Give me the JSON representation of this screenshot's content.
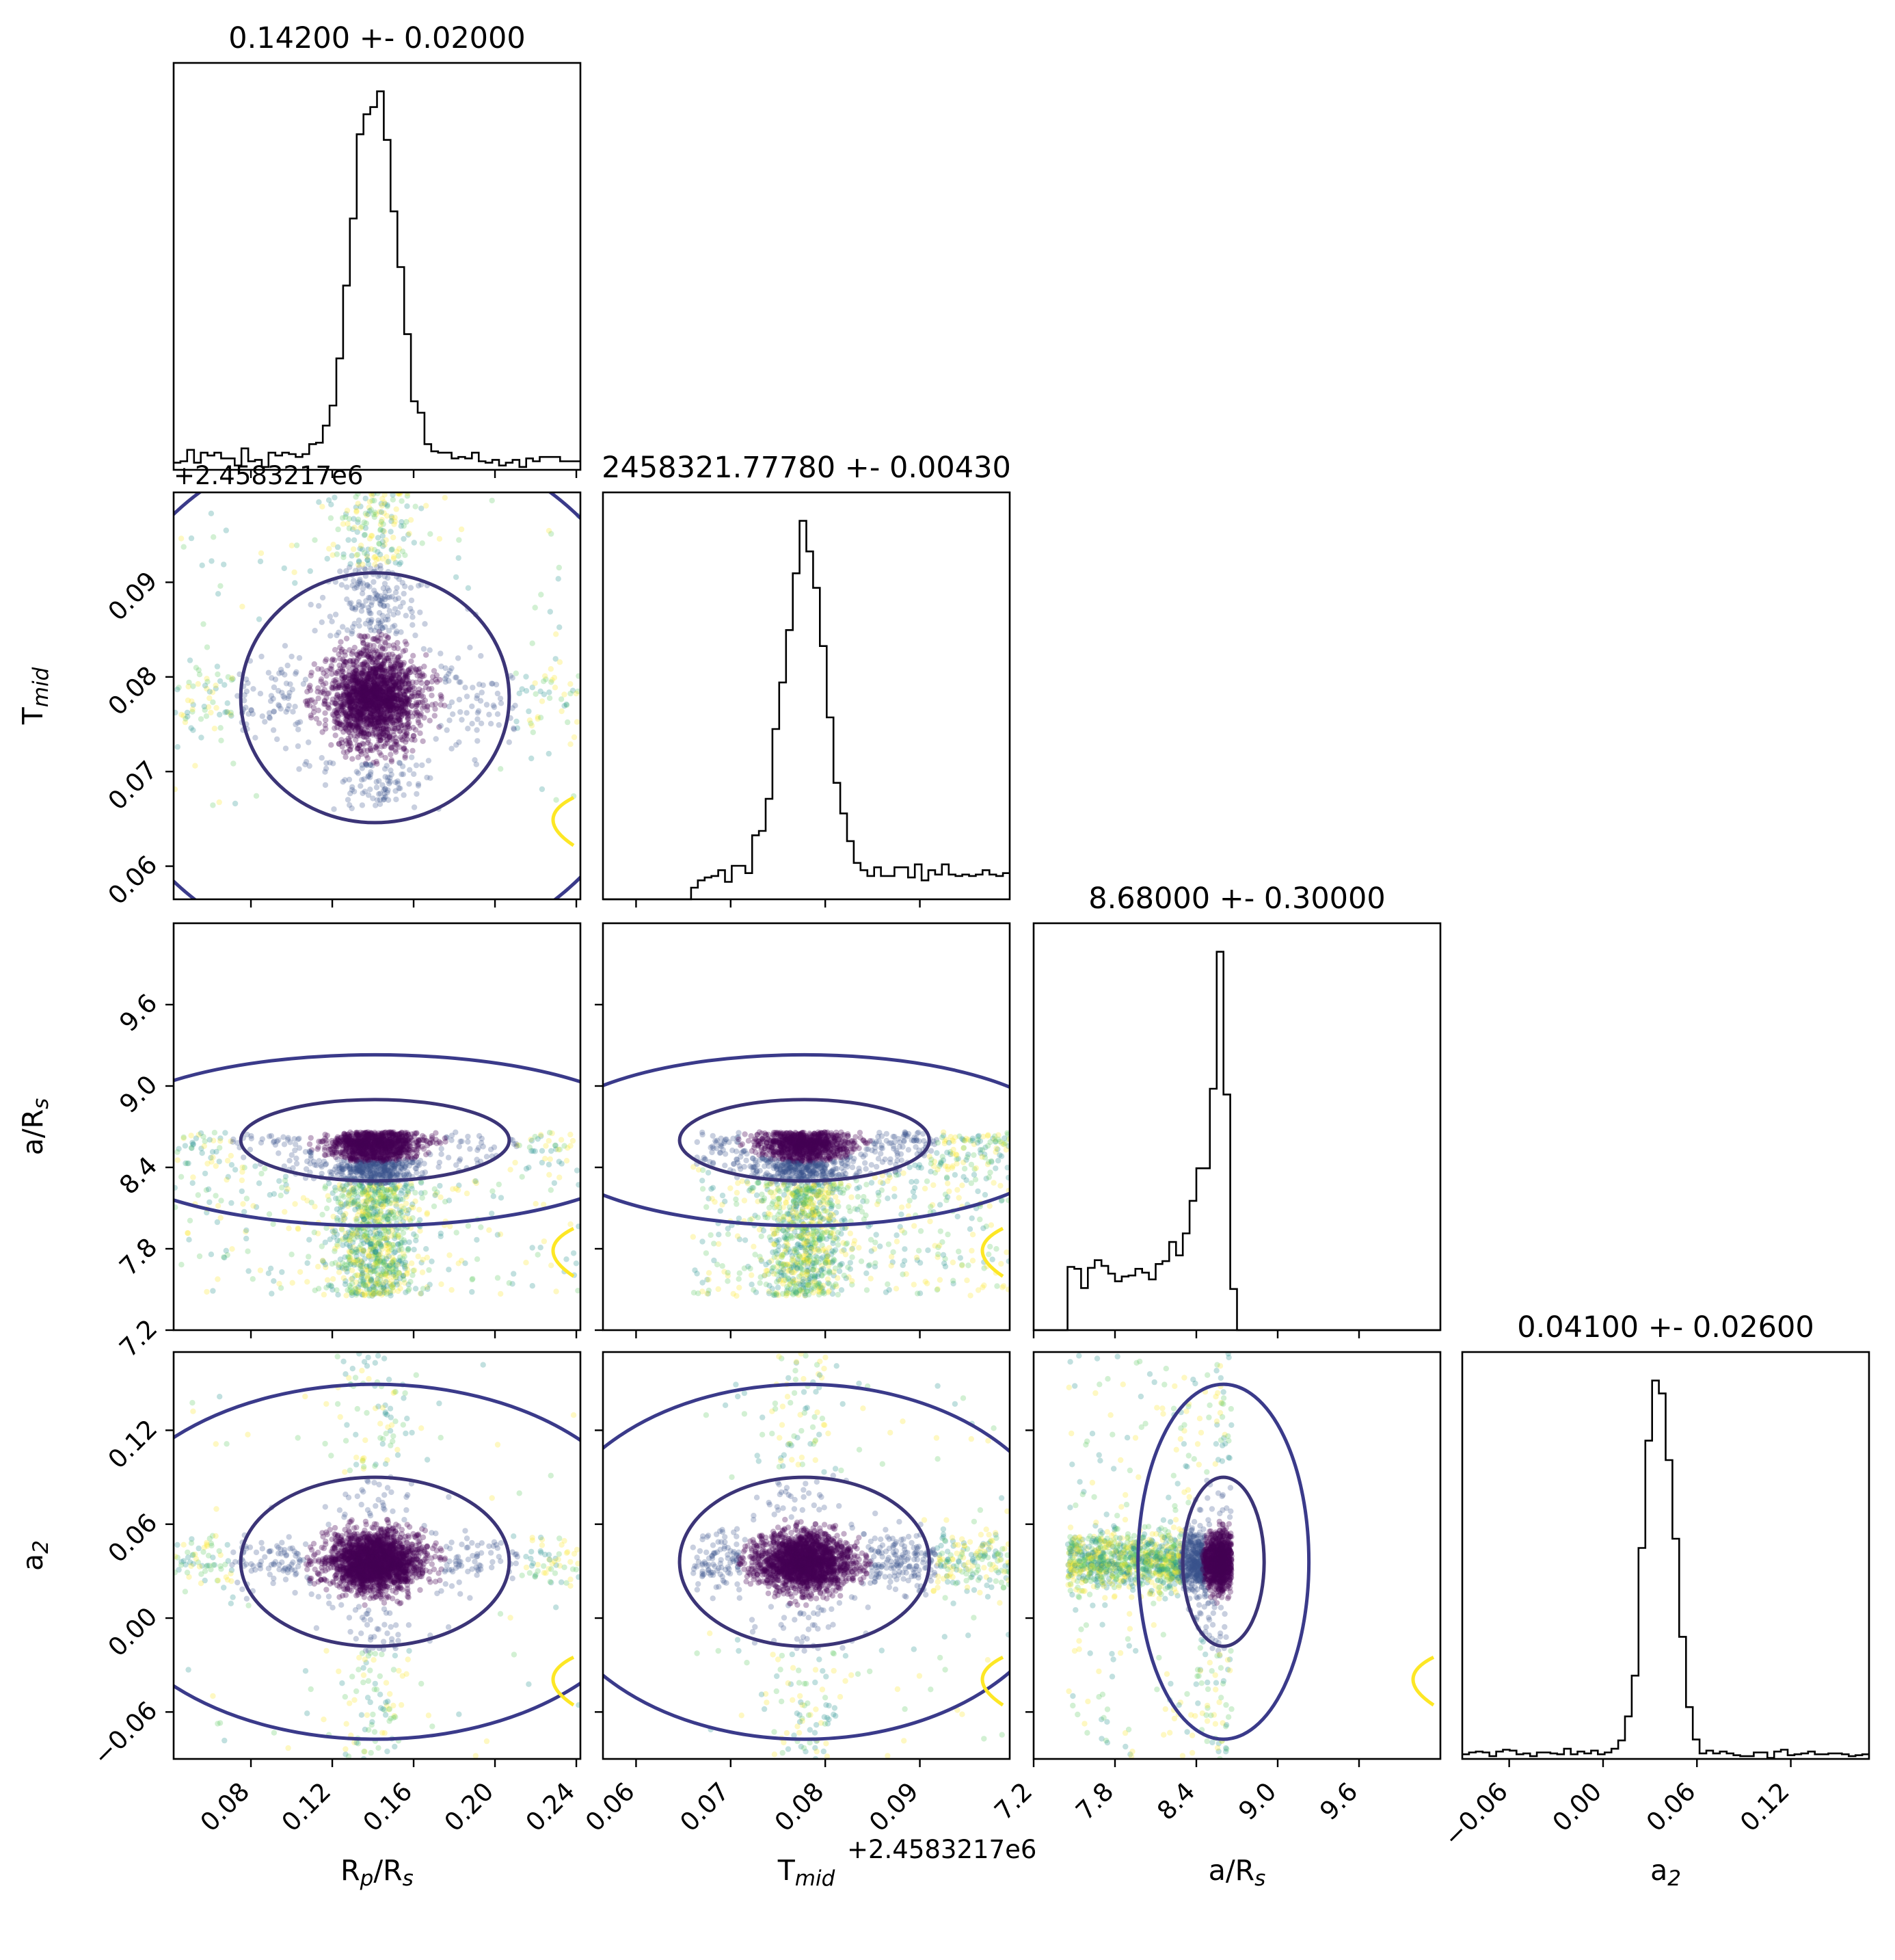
{
  "chart_data": {
    "type": "corner",
    "grid": false,
    "parameters": [
      {
        "id": "rp",
        "label_main": "R",
        "label_sub1": "p",
        "label_mid": "/R",
        "label_sub2": "s",
        "ticks": [
          0.08,
          0.12,
          0.16,
          0.2,
          0.24
        ],
        "tick_labels": [
          "0.08",
          "0.12",
          "0.16",
          "0.20",
          "0.24"
        ],
        "range": [
          0.042,
          0.242
        ]
      },
      {
        "id": "tmid",
        "label_main": "T",
        "label_sub1": "mid",
        "label_mid": "",
        "label_sub2": "",
        "ticks": [
          0.06,
          0.07,
          0.08,
          0.09
        ],
        "tick_labels": [
          "0.06",
          "0.07",
          "0.08",
          "0.09"
        ],
        "range": [
          0.0565,
          0.0995
        ],
        "offset_label": "+2.4583217e6"
      },
      {
        "id": "ars",
        "label_main": "a/R",
        "label_sub1": "",
        "label_mid": "",
        "label_sub2": "s",
        "ticks": [
          7.2,
          7.8,
          8.4,
          9.0,
          9.6
        ],
        "tick_labels": [
          "7.2",
          "7.8",
          "8.4",
          "9.0",
          "9.6"
        ],
        "range": [
          7.2,
          10.2
        ]
      },
      {
        "id": "a2",
        "label_main": "a",
        "label_sub1": "2",
        "label_mid": "",
        "label_sub2": "",
        "ticks": [
          -0.06,
          0.0,
          0.06,
          0.12
        ],
        "tick_labels": [
          "−0.06",
          "0.00",
          "0.06",
          "0.12"
        ],
        "range": [
          -0.09,
          0.17
        ]
      }
    ],
    "titles": [
      "0.14200 +- 0.02000",
      "2458321.77780 +- 0.00430",
      "8.68000 +- 0.30000",
      "0.04100 +- 0.02600"
    ],
    "posteriors": [
      {
        "center": 0.141,
        "sigma": 0.011,
        "broad": 0.18,
        "window": [
          0.042,
          0.242
        ],
        "skew": 0
      },
      {
        "center": 0.0778,
        "sigma": 0.0022,
        "broad": 0.3,
        "window": [
          0.066,
          0.0995
        ],
        "skew": 0
      },
      {
        "center": 8.6,
        "sigma": 0.05,
        "broad": 0.55,
        "window": [
          7.45,
          8.66
        ],
        "skew": 1
      },
      {
        "center": 0.036,
        "sigma": 0.009,
        "broad": 0.15,
        "window": [
          -0.09,
          0.17
        ],
        "skew": 0
      }
    ],
    "colors": {
      "scatter": [
        "#440154",
        "#3b528b",
        "#21918c",
        "#5ec962",
        "#fde725"
      ],
      "contour_inner": "#3b3477",
      "contour_outer": "#3a3a8a",
      "contour_yellow": "#fde725",
      "histogram": "#000000"
    }
  }
}
